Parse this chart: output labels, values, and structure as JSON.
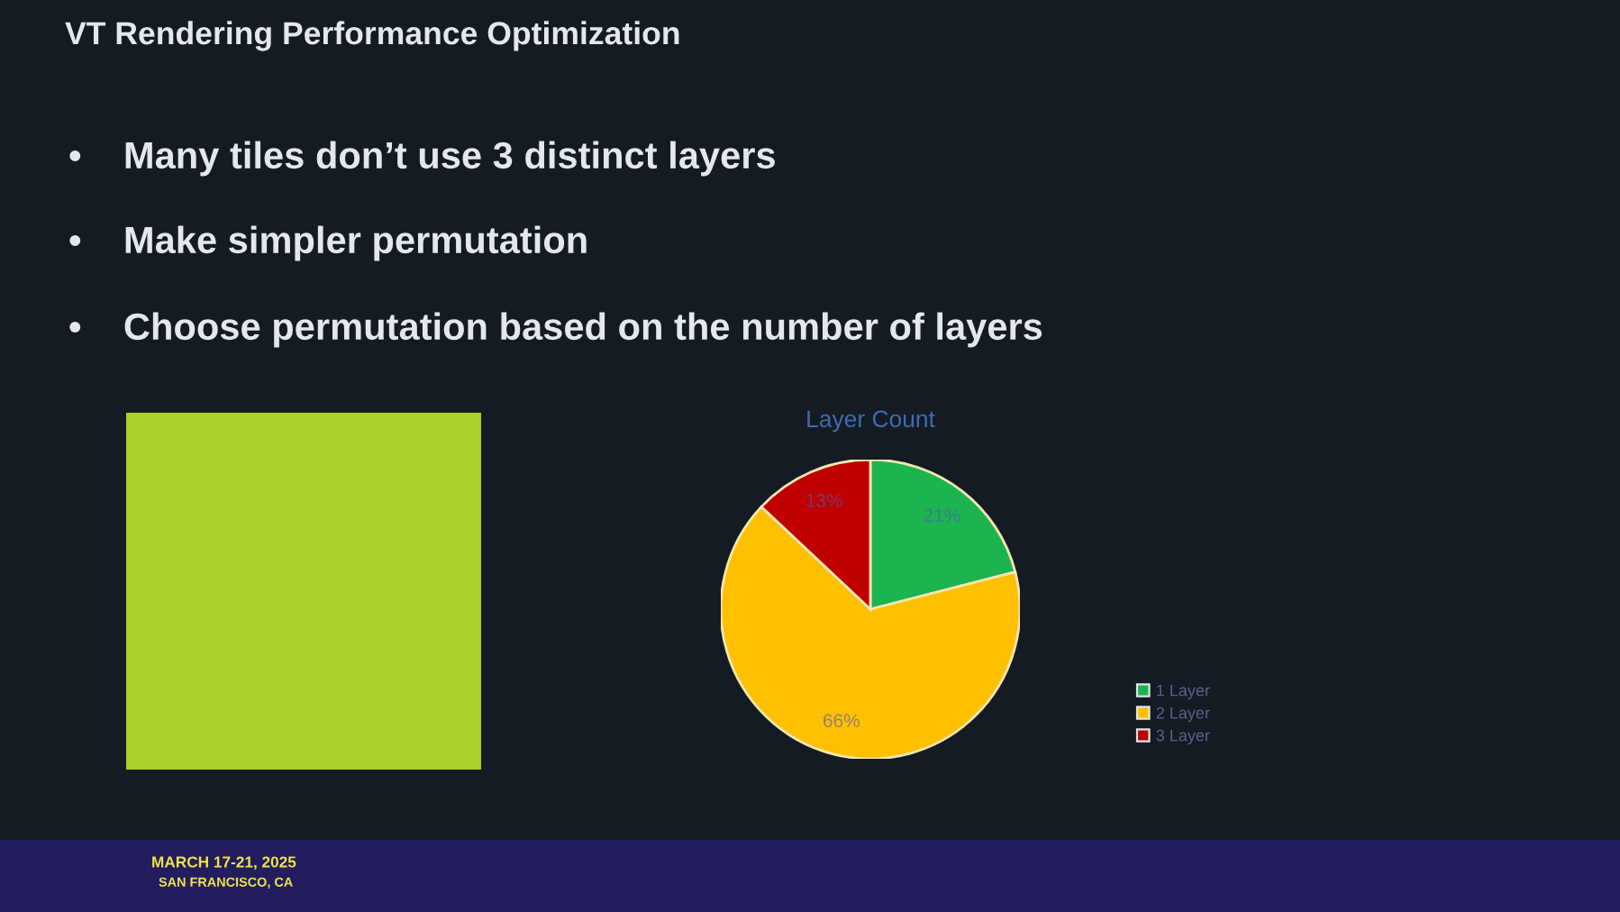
{
  "chart_data": {
    "type": "pie",
    "title": "Layer Count",
    "categories": [
      "1 Layer",
      "2 Layer",
      "3 Layer"
    ],
    "values": [
      21,
      66,
      13
    ],
    "colors": [
      "#1db34f",
      "#ffc000",
      "#c00000"
    ],
    "value_labels": [
      "21%",
      "66%",
      "13%"
    ],
    "legend": "bottom right",
    "annotations": [
      "VT Rendering Performance Optimization",
      "•    Many tiles don’t use 3 distinct layers",
      "•    Make simpler permutation",
      "•    Choose permutation based on the number of layers",
      "MARCH 17-21, 2025",
      "SAN FRANCISCO, CA"
    ]
  }
}
